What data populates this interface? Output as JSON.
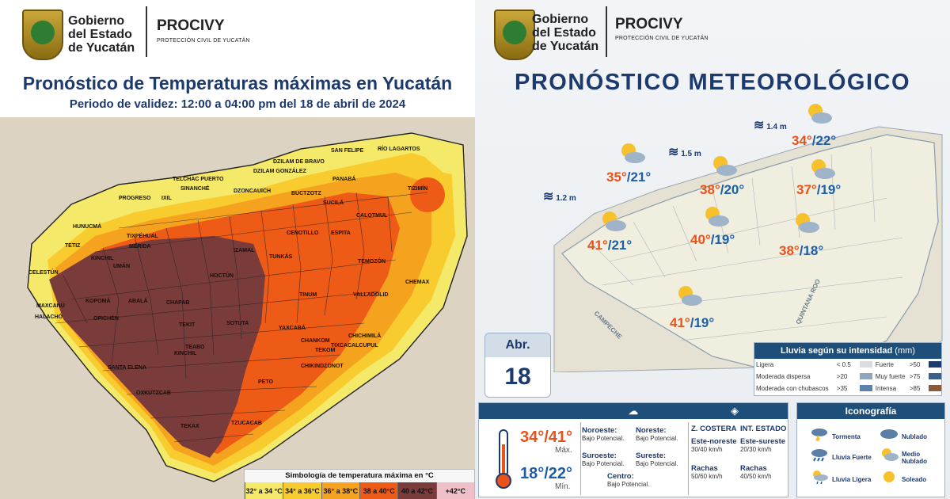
{
  "left": {
    "gov_line1": "Gobierno",
    "gov_line2": "del Estado",
    "gov_line3": "de Yucatán",
    "seal_text": "YUCATÁN",
    "agency": "PROCIVY",
    "agency_sub": "PROTECCIÓN CIVIL DE YUCATÁN",
    "title": "Pronóstico de Temperaturas máximas en Yucatán",
    "subtitle": "Periodo de validez: 12:00 a 04:00 pm del 18 de abril de 2024",
    "places": [
      "RÍO LAGARTOS",
      "SAN FELIPE",
      "DZILAM DE BRAVO",
      "TELCHAC PUERTO",
      "DZILAM GONZÁLEZ",
      "PANABÁ",
      "TIZIMÍN",
      "SINANCHÉ",
      "DZONCAUICH",
      "BUCTZOTZ",
      "SUCILÁ",
      "PROGRESO",
      "IXIL",
      "HUNUCMÁ",
      "CALOTMUL",
      "ESPITA",
      "CENOTILLO",
      "TETIZ",
      "KINCHIL",
      "UMÁN",
      "MÉRIDA",
      "IZAMAL",
      "TUNKÁS",
      "TEMOZÓN",
      "CHEMAX",
      "CELESTÚN",
      "TIXPÉHUAL",
      "HOCTÚN",
      "TINUM",
      "VALLADOLID",
      "MAXCANÚ",
      "KOPOMÁ",
      "ABALÁ",
      "CHAPAB",
      "SOTUTA",
      "YAXCABÁ",
      "HALACHÓ",
      "OPICHÉN",
      "TEKIT",
      "CHANKOM",
      "TEKOM",
      "CHICHIMILÁ",
      "SANTA ELENA",
      "TEABO",
      "KINCHIL",
      "OXKUTZCAB",
      "TZUCACAB",
      "PETO",
      "TEKAX",
      "TIXCACALCUPUL",
      "CHIKINDZONOT"
    ],
    "legend": {
      "title": "Simbología de temperatura máxima en °C",
      "ranges": [
        {
          "label": "32° a 34 °C",
          "color": "#f5e96a"
        },
        {
          "label": "34° a 36°C",
          "color": "#f8cc2e"
        },
        {
          "label": "36° a 38°C",
          "color": "#f5a31f"
        },
        {
          "label": "38 a 40°C",
          "color": "#ed5b17"
        },
        {
          "label": "40 a 42°C",
          "color": "#7a3b3b"
        },
        {
          "label": "+42°C",
          "color": "#f0c0c8"
        }
      ]
    }
  },
  "right": {
    "gov_line1": "Gobierno",
    "gov_line2": "del Estado",
    "gov_line3": "de Yucatán",
    "seal_text": "YUCATÁN",
    "agency": "PROCIVY",
    "agency_sub": "PROTECCIÓN CIVIL DE YUCATÁN",
    "title": "PRONÓSTICO METEOROLÓGICO",
    "waves": [
      "1.4 m",
      "1.5 m",
      "1.2 m"
    ],
    "temps": [
      {
        "max": "34°",
        "min": "/22°"
      },
      {
        "max": "35°",
        "min": "/21°"
      },
      {
        "max": "38°",
        "min": "/20°"
      },
      {
        "max": "37°",
        "min": "/19°"
      },
      {
        "max": "41°",
        "min": "/21°"
      },
      {
        "max": "40°",
        "min": "/19°"
      },
      {
        "max": "38°",
        "min": "/18°"
      },
      {
        "max": "41°",
        "min": "/19°"
      }
    ],
    "map_labels": [
      "CAMPECHE",
      "QUINTANA ROO"
    ],
    "date": {
      "month": "Abr.",
      "day": "18"
    },
    "rain": {
      "title": "Lluvia según su intensidad",
      "unit": "(mm)",
      "rows": [
        {
          "a": "Ligera",
          "av": "< 0.5",
          "b": "Fuerte",
          "bv": ">50"
        },
        {
          "a": "Moderada dispersa",
          "av": ">20",
          "b": "Muy fuerte",
          "bv": ">75"
        },
        {
          "a": "Moderada con chubascos",
          "av": ">35",
          "b": "Intensa",
          "bv": ">85"
        }
      ]
    },
    "summary": {
      "range_max": "34°/41°",
      "max_label": "Máx.",
      "range_min": "18°/22°",
      "min_label": "Mín.",
      "winds": [
        {
          "dir": "Noroeste:",
          "val": "Bajo Potencial."
        },
        {
          "dir": "Noreste:",
          "val": "Bajo Potencial."
        },
        {
          "dir": "Suroeste:",
          "val": "Bajo Potencial."
        },
        {
          "dir": "Sureste:",
          "val": "Bajo Potencial."
        },
        {
          "dir": "Centro:",
          "val": "Bajo Potencial."
        }
      ],
      "coastal_head": "Z. COSTERA",
      "state_head": "INT. ESTADO",
      "coastal_wind": "Este-noreste",
      "coastal_wind_val": "30/40 km/h",
      "state_wind": "Este-sureste",
      "state_wind_val": "20/30 km/h",
      "gust_label": "Rachas",
      "coastal_gust": "50/60 km/h",
      "state_gust": "40/50 km/h"
    },
    "iconography": {
      "title": "Iconografía",
      "items": [
        "Tormenta",
        "Nublado",
        "Lluvia Fuerte",
        "Medio Nublado",
        "Lluvia Ligera",
        "Soleado"
      ]
    }
  }
}
